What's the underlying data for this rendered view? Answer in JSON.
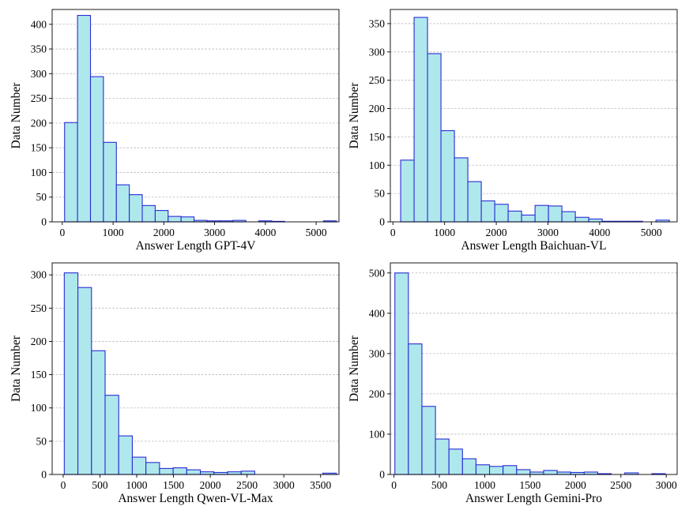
{
  "chart_data": [
    {
      "type": "bar",
      "xlabel": "Answer Length GPT-4V",
      "ylabel": "Data Number",
      "xlim": [
        -200,
        5450
      ],
      "ylim": [
        0,
        430
      ],
      "xticks": [
        0,
        1000,
        2000,
        3000,
        4000,
        5000
      ],
      "yticks": [
        0,
        50,
        100,
        150,
        200,
        250,
        300,
        350,
        400
      ],
      "grid": "horizontal-dashed",
      "bins": [
        [
          45,
          300
        ],
        [
          300,
          555
        ],
        [
          555,
          810
        ],
        [
          810,
          1065
        ],
        [
          1065,
          1320
        ],
        [
          1320,
          1575
        ],
        [
          1575,
          1830
        ],
        [
          1830,
          2085
        ],
        [
          2085,
          2340
        ],
        [
          2340,
          2595
        ],
        [
          2595,
          2850
        ],
        [
          2850,
          3105
        ],
        [
          3105,
          3360
        ],
        [
          3360,
          3615
        ],
        [
          3615,
          3870
        ],
        [
          3870,
          4125
        ],
        [
          4125,
          4380
        ],
        [
          4380,
          4635
        ],
        [
          4635,
          4890
        ],
        [
          4890,
          5145
        ],
        [
          5145,
          5400
        ]
      ],
      "values": [
        201,
        418,
        294,
        161,
        75,
        55,
        33,
        23,
        11,
        10,
        3,
        2,
        2,
        3,
        0,
        2,
        1,
        0,
        0,
        0,
        2
      ]
    },
    {
      "type": "bar",
      "xlabel": "Answer Length Baichuan-VL",
      "ylabel": "Data Number",
      "xlim": [
        -50,
        5500
      ],
      "ylim": [
        0,
        375
      ],
      "xticks": [
        0,
        1000,
        2000,
        3000,
        4000,
        5000
      ],
      "yticks": [
        0,
        50,
        100,
        150,
        200,
        250,
        300,
        350
      ],
      "grid": "horizontal-dashed",
      "bins": [
        [
          150,
          410
        ],
        [
          410,
          670
        ],
        [
          670,
          930
        ],
        [
          930,
          1190
        ],
        [
          1190,
          1450
        ],
        [
          1450,
          1710
        ],
        [
          1710,
          1970
        ],
        [
          1970,
          2230
        ],
        [
          2230,
          2490
        ],
        [
          2490,
          2750
        ],
        [
          2750,
          3010
        ],
        [
          3010,
          3270
        ],
        [
          3270,
          3530
        ],
        [
          3530,
          3790
        ],
        [
          3790,
          4050
        ],
        [
          4050,
          4310
        ],
        [
          4310,
          4570
        ],
        [
          4570,
          4830
        ],
        [
          4830,
          5090
        ],
        [
          5090,
          5350
        ]
      ],
      "values": [
        109,
        361,
        297,
        161,
        113,
        71,
        37,
        31,
        19,
        12,
        29,
        28,
        18,
        8,
        5,
        1,
        1,
        1,
        0,
        3
      ]
    },
    {
      "type": "bar",
      "xlabel": "Answer Length Qwen-VL-Max",
      "ylabel": "Data Number",
      "xlim": [
        -150,
        3750
      ],
      "ylim": [
        0,
        318
      ],
      "xticks": [
        0,
        500,
        1000,
        1500,
        2000,
        2500,
        3000,
        3500
      ],
      "yticks": [
        0,
        50,
        100,
        150,
        200,
        250,
        300
      ],
      "grid": "horizontal-dashed",
      "bins": [
        [
          15,
          200
        ],
        [
          200,
          385
        ],
        [
          385,
          570
        ],
        [
          570,
          755
        ],
        [
          755,
          940
        ],
        [
          940,
          1125
        ],
        [
          1125,
          1310
        ],
        [
          1310,
          1495
        ],
        [
          1495,
          1680
        ],
        [
          1680,
          1865
        ],
        [
          1865,
          2050
        ],
        [
          2050,
          2235
        ],
        [
          2235,
          2420
        ],
        [
          2420,
          2605
        ],
        [
          2605,
          2790
        ],
        [
          2790,
          2975
        ],
        [
          2975,
          3160
        ],
        [
          3160,
          3345
        ],
        [
          3345,
          3530
        ],
        [
          3530,
          3715
        ]
      ],
      "values": [
        303,
        281,
        186,
        119,
        58,
        26,
        18,
        9,
        10,
        7,
        4,
        3,
        4,
        5,
        0,
        0,
        0,
        0,
        0,
        2
      ]
    },
    {
      "type": "bar",
      "xlabel": "Answer Length Gemini-Pro",
      "ylabel": "Data Number",
      "xlim": [
        -40,
        3120
      ],
      "ylim": [
        0,
        525
      ],
      "xticks": [
        0,
        500,
        1000,
        1500,
        2000,
        2500,
        3000
      ],
      "yticks": [
        0,
        100,
        200,
        300,
        400,
        500
      ],
      "grid": "horizontal-dashed",
      "bins": [
        [
          10,
          159
        ],
        [
          159,
          308
        ],
        [
          308,
          457
        ],
        [
          457,
          606
        ],
        [
          606,
          755
        ],
        [
          755,
          904
        ],
        [
          904,
          1053
        ],
        [
          1053,
          1202
        ],
        [
          1202,
          1351
        ],
        [
          1351,
          1500
        ],
        [
          1500,
          1649
        ],
        [
          1649,
          1798
        ],
        [
          1798,
          1947
        ],
        [
          1947,
          2096
        ],
        [
          2096,
          2245
        ],
        [
          2245,
          2394
        ],
        [
          2394,
          2543
        ],
        [
          2543,
          2692
        ],
        [
          2692,
          2841
        ],
        [
          2841,
          2990
        ]
      ],
      "values": [
        500,
        324,
        169,
        88,
        63,
        39,
        24,
        20,
        22,
        12,
        6,
        10,
        6,
        5,
        6,
        2,
        0,
        4,
        0,
        2
      ]
    }
  ]
}
